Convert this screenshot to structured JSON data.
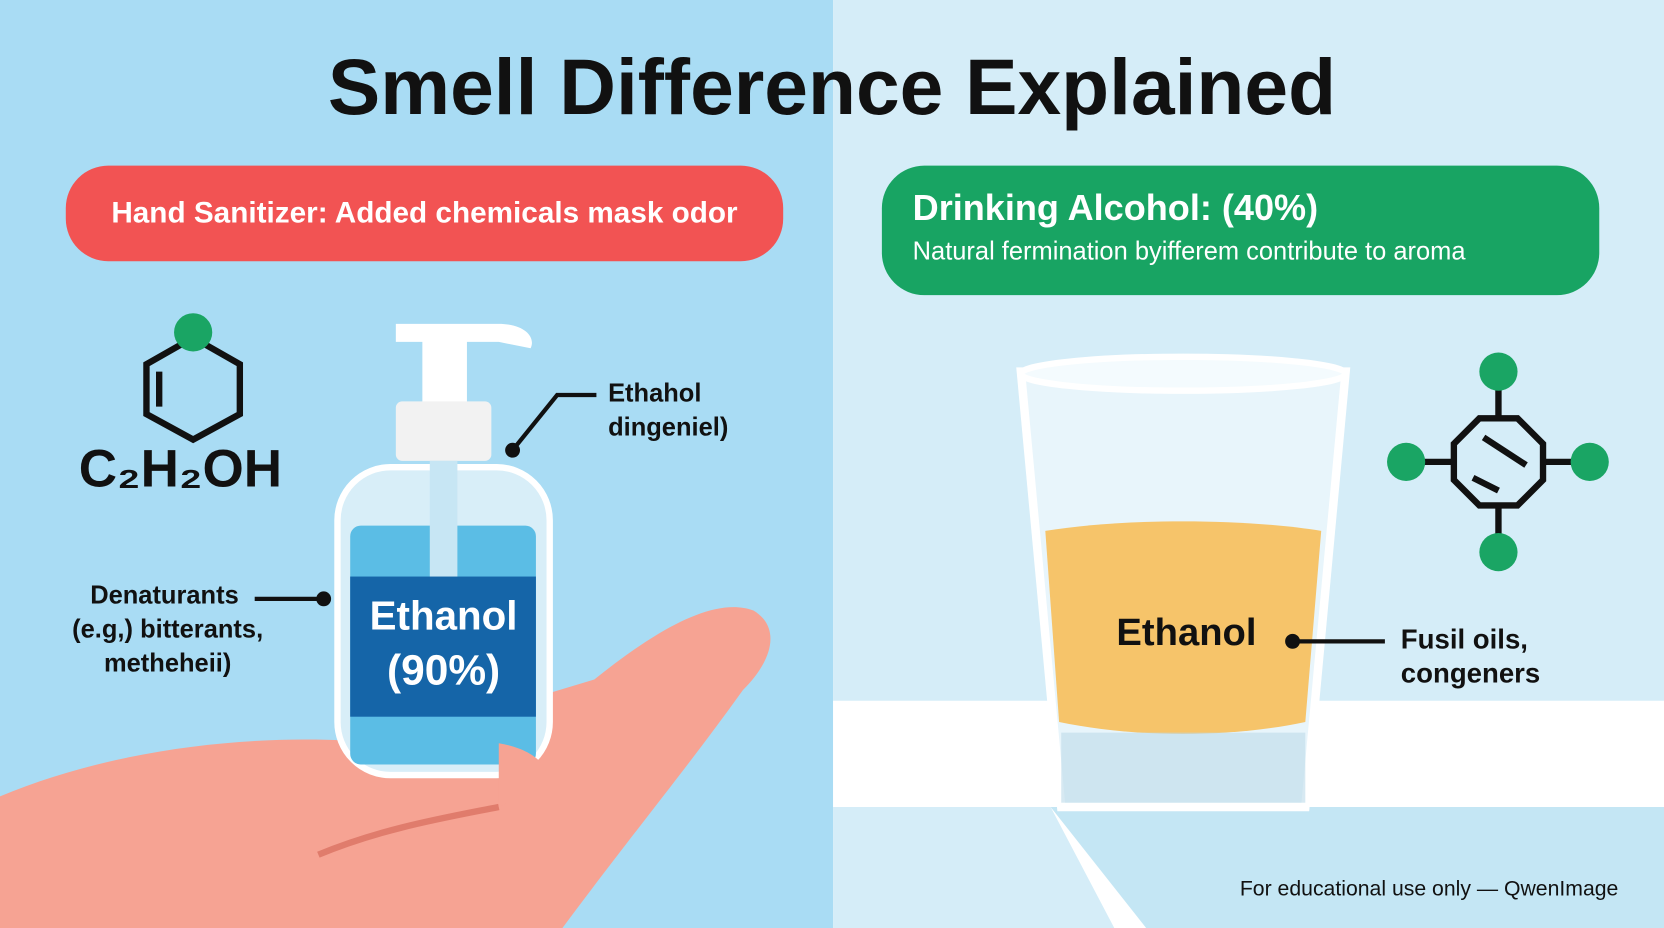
{
  "title": "Smell Difference Explained",
  "left": {
    "banner": "Hand Sanitizer: Added chemicals mask odor",
    "formula": "C₂H₂OH",
    "pump_label": [
      "Ethahol",
      "dingeniel)"
    ],
    "denaturants_label": [
      "Denaturants",
      "(e.g,) bitterants,",
      "metheheii)"
    ],
    "bottle_label": [
      "Ethanol",
      "(90%)"
    ]
  },
  "right": {
    "banner_title": "Drinking Alcohol: (40%)",
    "banner_subtitle": "Natural fermination byifferem contribute to aroma",
    "glass_label": "Ethanol",
    "side_label": [
      "Fusil oils,",
      "congeners"
    ]
  },
  "footer": "For educational use only — QwenImage"
}
